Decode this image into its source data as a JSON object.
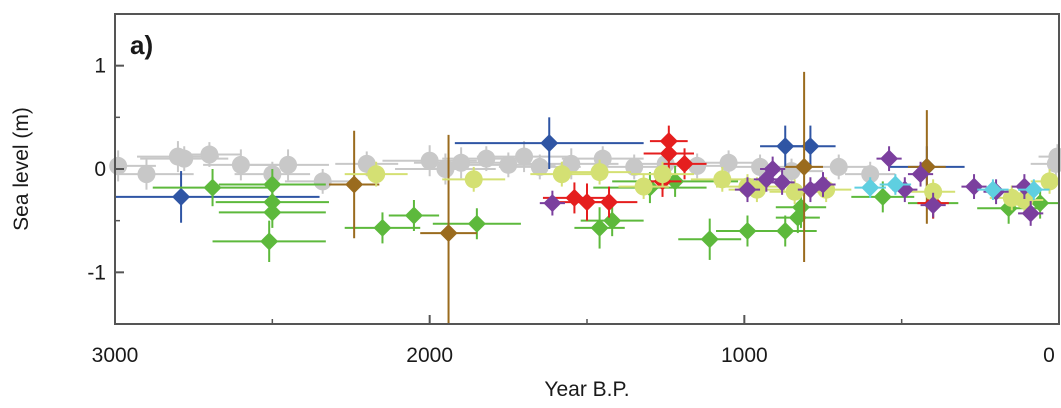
{
  "chart_data": {
    "type": "scatter",
    "panel_label": "a)",
    "xlabel": "Year B.P.",
    "ylabel": "Sea level (m)",
    "xlim": [
      3000,
      0
    ],
    "ylim": [
      -1.5,
      1.5
    ],
    "x_reversed": true,
    "x_ticks": [
      3000,
      2000,
      1000,
      0
    ],
    "x_tick_labels": [
      "3000",
      "2000",
      "1000",
      "0"
    ],
    "y_ticks": [
      1,
      0,
      -1
    ],
    "y_tick_labels": [
      "1",
      "0",
      "-1"
    ],
    "grid": false,
    "legend": "none",
    "series": [
      {
        "color": "#c8c8c8",
        "marker": "circle",
        "points": [
          {
            "x": 2990,
            "y": 0.03,
            "xerr": 120,
            "yerr": 0.15
          },
          {
            "x": 2900,
            "y": -0.05,
            "xerr": 150,
            "yerr": 0.15
          },
          {
            "x": 2800,
            "y": 0.12,
            "xerr": 130,
            "yerr": 0.15
          },
          {
            "x": 2780,
            "y": 0.1,
            "xerr": 140,
            "yerr": 0.12
          },
          {
            "x": 2700,
            "y": 0.14,
            "xerr": 100,
            "yerr": 0.12
          },
          {
            "x": 2600,
            "y": 0.04,
            "xerr": 120,
            "yerr": 0.15
          },
          {
            "x": 2500,
            "y": -0.05,
            "xerr": 120,
            "yerr": 0.12
          },
          {
            "x": 2450,
            "y": 0.04,
            "xerr": 130,
            "yerr": 0.15
          },
          {
            "x": 2340,
            "y": -0.12,
            "xerr": 120,
            "yerr": 0.12
          },
          {
            "x": 2200,
            "y": 0.05,
            "xerr": 100,
            "yerr": 0.12
          },
          {
            "x": 2000,
            "y": 0.08,
            "xerr": 150,
            "yerr": 0.15
          },
          {
            "x": 1950,
            "y": 0.0,
            "xerr": 160,
            "yerr": 0.15
          },
          {
            "x": 1900,
            "y": 0.06,
            "xerr": 150,
            "yerr": 0.15
          },
          {
            "x": 1820,
            "y": 0.1,
            "xerr": 140,
            "yerr": 0.12
          },
          {
            "x": 1750,
            "y": 0.04,
            "xerr": 150,
            "yerr": 0.12
          },
          {
            "x": 1700,
            "y": 0.12,
            "xerr": 150,
            "yerr": 0.15
          },
          {
            "x": 1650,
            "y": 0.02,
            "xerr": 130,
            "yerr": 0.12
          },
          {
            "x": 1550,
            "y": 0.05,
            "xerr": 150,
            "yerr": 0.15
          },
          {
            "x": 1450,
            "y": 0.1,
            "xerr": 130,
            "yerr": 0.12
          },
          {
            "x": 1350,
            "y": 0.02,
            "xerr": 120,
            "yerr": 0.12
          },
          {
            "x": 1250,
            "y": 0.05,
            "xerr": 100,
            "yerr": 0.12
          },
          {
            "x": 1150,
            "y": 0.03,
            "xerr": 120,
            "yerr": 0.12
          },
          {
            "x": 1050,
            "y": 0.06,
            "xerr": 110,
            "yerr": 0.12
          },
          {
            "x": 950,
            "y": 0.02,
            "xerr": 120,
            "yerr": 0.12
          },
          {
            "x": 850,
            "y": -0.02,
            "xerr": 100,
            "yerr": 0.12
          },
          {
            "x": 700,
            "y": 0.02,
            "xerr": 100,
            "yerr": 0.12
          },
          {
            "x": 600,
            "y": -0.05,
            "xerr": 80,
            "yerr": 0.12
          },
          {
            "x": 10,
            "y": 0.05,
            "xerr": 80,
            "yerr": 0.15
          },
          {
            "x": 5,
            "y": 0.12,
            "xerr": 60,
            "yerr": 0.12
          }
        ]
      },
      {
        "color": "#2f55a4",
        "marker": "diamond",
        "points": [
          {
            "x": 2790,
            "y": -0.27,
            "xerr": 440,
            "yerr": 0.25
          },
          {
            "x": 1620,
            "y": 0.25,
            "xerr": 300,
            "yerr": 0.25
          },
          {
            "x": 870,
            "y": 0.22,
            "xerr": 80,
            "yerr": 0.2
          },
          {
            "x": 790,
            "y": 0.22,
            "xerr": 80,
            "yerr": 0.2
          },
          {
            "x": 420,
            "y": 0.02,
            "xerr": 120,
            "yerr": 0.2
          }
        ]
      },
      {
        "color": "#5db93c",
        "marker": "diamond",
        "points": [
          {
            "x": 2690,
            "y": -0.18,
            "xerr": 190,
            "yerr": 0.18
          },
          {
            "x": 2500,
            "y": -0.15,
            "xerr": 170,
            "yerr": 0.15
          },
          {
            "x": 2500,
            "y": -0.32,
            "xerr": 180,
            "yerr": 0.15
          },
          {
            "x": 2500,
            "y": -0.42,
            "xerr": 170,
            "yerr": 0.15
          },
          {
            "x": 2510,
            "y": -0.7,
            "xerr": 180,
            "yerr": 0.2
          },
          {
            "x": 2150,
            "y": -0.57,
            "xerr": 120,
            "yerr": 0.15
          },
          {
            "x": 2050,
            "y": -0.45,
            "xerr": 80,
            "yerr": 0.15
          },
          {
            "x": 1850,
            "y": -0.53,
            "xerr": 140,
            "yerr": 0.15
          },
          {
            "x": 1460,
            "y": -0.57,
            "xerr": 80,
            "yerr": 0.2
          },
          {
            "x": 1420,
            "y": -0.5,
            "xerr": 100,
            "yerr": 0.15
          },
          {
            "x": 1300,
            "y": -0.18,
            "xerr": 180,
            "yerr": 0.15
          },
          {
            "x": 1220,
            "y": -0.12,
            "xerr": 200,
            "yerr": 0.15
          },
          {
            "x": 1110,
            "y": -0.68,
            "xerr": 100,
            "yerr": 0.2
          },
          {
            "x": 990,
            "y": -0.6,
            "xerr": 100,
            "yerr": 0.15
          },
          {
            "x": 870,
            "y": -0.6,
            "xerr": 100,
            "yerr": 0.15
          },
          {
            "x": 830,
            "y": -0.47,
            "xerr": 70,
            "yerr": 0.15
          },
          {
            "x": 820,
            "y": -0.37,
            "xerr": 80,
            "yerr": 0.2
          },
          {
            "x": 560,
            "y": -0.27,
            "xerr": 100,
            "yerr": 0.15
          },
          {
            "x": 400,
            "y": -0.33,
            "xerr": 80,
            "yerr": 0.15
          },
          {
            "x": 160,
            "y": -0.38,
            "xerr": 100,
            "yerr": 0.15
          },
          {
            "x": 60,
            "y": -0.33,
            "xerr": 80,
            "yerr": 0.15
          }
        ]
      },
      {
        "color": "#9a6b1e",
        "marker": "diamond",
        "points": [
          {
            "x": 2240,
            "y": -0.15,
            "xerr": 80,
            "yerr": 0.52
          },
          {
            "x": 1940,
            "y": -0.62,
            "xerr": 90,
            "yerr": 0.95
          },
          {
            "x": 810,
            "y": 0.02,
            "xerr": 60,
            "yerr": 0.92
          },
          {
            "x": 420,
            "y": 0.02,
            "xerr": 60,
            "yerr": 0.55
          }
        ]
      },
      {
        "color": "#e51e1e",
        "marker": "diamond",
        "points": [
          {
            "x": 1540,
            "y": -0.28,
            "xerr": 100,
            "yerr": 0.15
          },
          {
            "x": 1500,
            "y": -0.32,
            "xerr": 90,
            "yerr": 0.18
          },
          {
            "x": 1430,
            "y": -0.32,
            "xerr": 90,
            "yerr": 0.15
          },
          {
            "x": 1240,
            "y": 0.27,
            "xerr": 60,
            "yerr": 0.15
          },
          {
            "x": 1240,
            "y": 0.15,
            "xerr": 80,
            "yerr": 0.15
          },
          {
            "x": 1260,
            "y": -0.12,
            "xerr": 60,
            "yerr": 0.15
          },
          {
            "x": 1190,
            "y": 0.05,
            "xerr": 70,
            "yerr": 0.15
          },
          {
            "x": 400,
            "y": -0.33,
            "xerr": 50,
            "yerr": 0.15
          }
        ]
      },
      {
        "color": "#d4e073",
        "marker": "circle",
        "points": [
          {
            "x": 2170,
            "y": -0.05,
            "xerr": 100,
            "yerr": 0.12
          },
          {
            "x": 1860,
            "y": -0.1,
            "xerr": 100,
            "yerr": 0.12
          },
          {
            "x": 1580,
            "y": -0.05,
            "xerr": 100,
            "yerr": 0.12
          },
          {
            "x": 1460,
            "y": -0.03,
            "xerr": 100,
            "yerr": 0.12
          },
          {
            "x": 1320,
            "y": -0.17,
            "xerr": 80,
            "yerr": 0.12
          },
          {
            "x": 1260,
            "y": -0.05,
            "xerr": 100,
            "yerr": 0.12
          },
          {
            "x": 1070,
            "y": -0.1,
            "xerr": 100,
            "yerr": 0.12
          },
          {
            "x": 990,
            "y": -0.17,
            "xerr": 100,
            "yerr": 0.12
          },
          {
            "x": 960,
            "y": -0.2,
            "xerr": 90,
            "yerr": 0.12
          },
          {
            "x": 840,
            "y": -0.22,
            "xerr": 80,
            "yerr": 0.12
          },
          {
            "x": 740,
            "y": -0.2,
            "xerr": 80,
            "yerr": 0.12
          },
          {
            "x": 400,
            "y": -0.22,
            "xerr": 70,
            "yerr": 0.12
          },
          {
            "x": 150,
            "y": -0.28,
            "xerr": 70,
            "yerr": 0.12
          },
          {
            "x": 110,
            "y": -0.3,
            "xerr": 60,
            "yerr": 0.12
          },
          {
            "x": 30,
            "y": -0.12,
            "xerr": 60,
            "yerr": 0.12
          }
        ]
      },
      {
        "color": "#7b3f9e",
        "marker": "diamond",
        "points": [
          {
            "x": 1610,
            "y": -0.33,
            "xerr": 40,
            "yerr": 0.12
          },
          {
            "x": 990,
            "y": -0.2,
            "xerr": 40,
            "yerr": 0.12
          },
          {
            "x": 930,
            "y": -0.1,
            "xerr": 40,
            "yerr": 0.12
          },
          {
            "x": 910,
            "y": 0.0,
            "xerr": 40,
            "yerr": 0.12
          },
          {
            "x": 880,
            "y": -0.13,
            "xerr": 40,
            "yerr": 0.12
          },
          {
            "x": 790,
            "y": -0.2,
            "xerr": 40,
            "yerr": 0.12
          },
          {
            "x": 750,
            "y": -0.15,
            "xerr": 40,
            "yerr": 0.12
          },
          {
            "x": 540,
            "y": 0.1,
            "xerr": 40,
            "yerr": 0.12
          },
          {
            "x": 490,
            "y": -0.2,
            "xerr": 40,
            "yerr": 0.12
          },
          {
            "x": 440,
            "y": -0.05,
            "xerr": 40,
            "yerr": 0.12
          },
          {
            "x": 400,
            "y": -0.35,
            "xerr": 40,
            "yerr": 0.12
          },
          {
            "x": 270,
            "y": -0.17,
            "xerr": 40,
            "yerr": 0.12
          },
          {
            "x": 200,
            "y": -0.22,
            "xerr": 40,
            "yerr": 0.12
          },
          {
            "x": 110,
            "y": -0.17,
            "xerr": 40,
            "yerr": 0.12
          },
          {
            "x": 90,
            "y": -0.43,
            "xerr": 40,
            "yerr": 0.12
          }
        ]
      },
      {
        "color": "#5fcfe0",
        "marker": "diamond",
        "points": [
          {
            "x": 600,
            "y": -0.18,
            "xerr": 50,
            "yerr": 0.1
          },
          {
            "x": 520,
            "y": -0.15,
            "xerr": 50,
            "yerr": 0.1
          },
          {
            "x": 210,
            "y": -0.2,
            "xerr": 50,
            "yerr": 0.1
          },
          {
            "x": 80,
            "y": -0.2,
            "xerr": 50,
            "yerr": 0.1
          }
        ]
      }
    ]
  }
}
